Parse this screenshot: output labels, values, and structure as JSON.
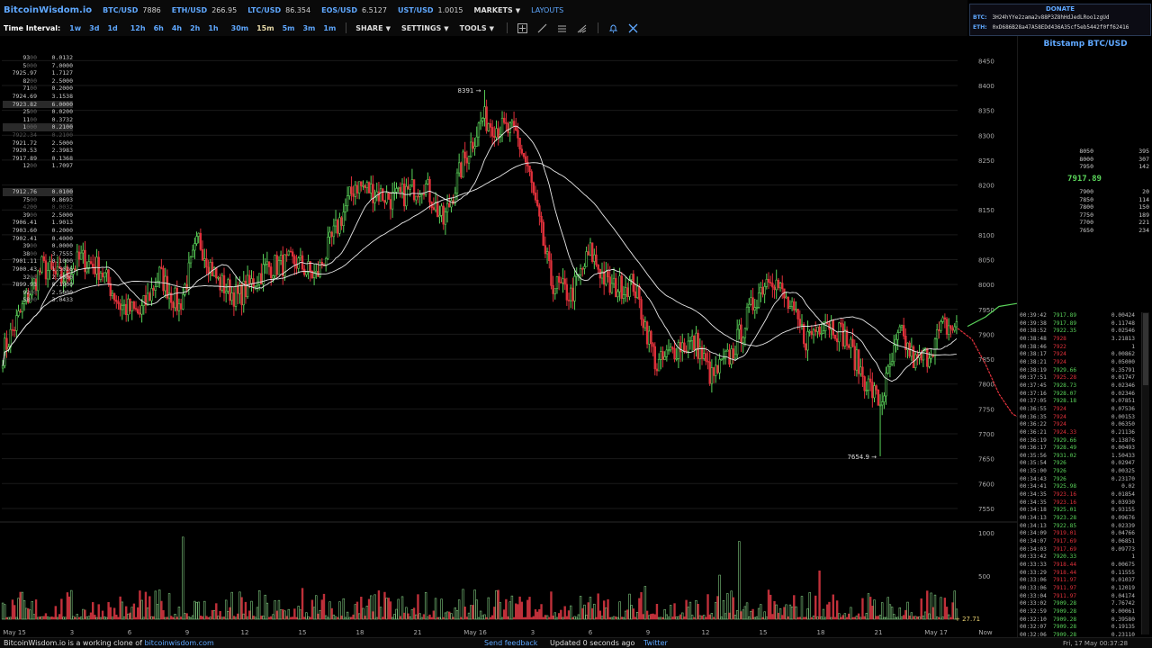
{
  "brand": {
    "logo": "BitcoinWisdom.io"
  },
  "tickers": [
    {
      "sym": "BTC/USD",
      "val": "7886"
    },
    {
      "sym": "ETH/USD",
      "val": "266.95"
    },
    {
      "sym": "LTC/USD",
      "val": "86.354"
    },
    {
      "sym": "EOS/USD",
      "val": "6.5127"
    },
    {
      "sym": "UST/USD",
      "val": "1.0015"
    }
  ],
  "menus": {
    "markets": "MARKETS",
    "layouts": "LAYOUTS",
    "share": "SHARE",
    "settings": "SETTINGS",
    "tools": "TOOLS"
  },
  "time_interval": {
    "label": "Time Interval:",
    "items": [
      "1w",
      "3d",
      "1d",
      "12h",
      "6h",
      "4h",
      "2h",
      "1h",
      "30m",
      "15m",
      "5m",
      "3m",
      "1m"
    ],
    "active": "15m"
  },
  "donate": {
    "title": "DONATE",
    "btc_label": "BTC:",
    "btc_addr": "3H24hYYe2zama2v88P3Z8hHdJedLRoo1zgUd",
    "eth_label": "ETH:",
    "eth_addr": "0xD686B28a47A58EDd436A35cf5eb5442f0ff62416"
  },
  "exchange": "Bitstamp BTC/USD",
  "last_price": "7917.89",
  "asks": [
    {
      "p": "93",
      "s": "00",
      "a": "0.0132"
    },
    {
      "p": "5",
      "s": "000",
      "a": "7.0000"
    },
    {
      "p": "7925.97",
      "s": "",
      "a": "1.7127"
    },
    {
      "p": "82",
      "s": "00",
      "a": "2.5000"
    },
    {
      "p": "71",
      "s": "00",
      "a": "0.2000"
    },
    {
      "p": "7924.69",
      "s": "",
      "a": "3.1538"
    },
    {
      "p": "7923.82",
      "s": "",
      "a": "6.0000",
      "hl": true
    },
    {
      "p": "25",
      "s": "00",
      "a": "0.0200"
    },
    {
      "p": "11",
      "s": "00",
      "a": "0.3732"
    },
    {
      "p": "1",
      "s": "000",
      "a": "0.2100",
      "hl": true
    },
    {
      "p": "7922.34",
      "s": "",
      "a": "0.2100",
      "dim": true
    },
    {
      "p": "7921.72",
      "s": "",
      "a": "2.5000"
    },
    {
      "p": "7920.53",
      "s": "",
      "a": "2.3983"
    },
    {
      "p": "7917.89",
      "s": "",
      "a": "0.1368"
    },
    {
      "p": "12",
      "s": "00",
      "a": "1.7097"
    }
  ],
  "bids": [
    {
      "p": "7912.76",
      "s": "",
      "a": "0.0100",
      "hl": true
    },
    {
      "p": "75",
      "s": "00",
      "a": "0.8693"
    },
    {
      "p": "42",
      "s": "00",
      "a": "0.0032",
      "dim": true
    },
    {
      "p": "39",
      "s": "00",
      "a": "2.5000"
    },
    {
      "p": "7906.41",
      "s": "",
      "a": "1.9013"
    },
    {
      "p": "7903.60",
      "s": "",
      "a": "0.2000"
    },
    {
      "p": "7902.41",
      "s": "",
      "a": "0.4000"
    },
    {
      "p": "39",
      "s": "00",
      "a": "0.0000"
    },
    {
      "p": "38",
      "s": "00",
      "a": "3.7555"
    },
    {
      "p": "7901.11",
      "s": "",
      "a": "0.1000"
    },
    {
      "p": "7900.43",
      "s": "",
      "a": "1.5026"
    },
    {
      "p": "32",
      "s": "00",
      "a": "2.5000"
    },
    {
      "p": "7899.93",
      "s": "",
      "a": "0.1900"
    },
    {
      "p": "92",
      "s": "00",
      "a": "2.5000"
    },
    {
      "p": "58",
      "s": "00",
      "a": "3.0433"
    }
  ],
  "ask_depth": [
    {
      "p": "8050",
      "q": "395"
    },
    {
      "p": "8000",
      "q": "307"
    },
    {
      "p": "7950",
      "q": "142"
    }
  ],
  "bid_depth": [
    {
      "p": "7900",
      "q": "20"
    },
    {
      "p": "7850",
      "q": "114"
    },
    {
      "p": "7800",
      "q": "150"
    },
    {
      "p": "7750",
      "q": "189"
    },
    {
      "p": "7700",
      "q": "221"
    },
    {
      "p": "7650",
      "q": "234"
    }
  ],
  "trades": [
    {
      "t": "00:39:42",
      "p": "7917.89",
      "q": "0.00424",
      "c": "g"
    },
    {
      "t": "00:39:38",
      "p": "7917.89",
      "q": "0.11748",
      "c": "g"
    },
    {
      "t": "00:38:52",
      "p": "7922.35",
      "q": "0.02546",
      "c": "g"
    },
    {
      "t": "00:38:48",
      "p": "7928",
      "q": "3.21813",
      "c": "r"
    },
    {
      "t": "00:38:46",
      "p": "7922",
      "q": "1",
      "c": "r"
    },
    {
      "t": "00:38:17",
      "p": "7924",
      "q": "0.00862",
      "c": "r"
    },
    {
      "t": "00:38:21",
      "p": "7924",
      "q": "0.05000",
      "c": "r"
    },
    {
      "t": "00:38:19",
      "p": "7929.66",
      "q": "0.35791",
      "c": "g"
    },
    {
      "t": "00:37:51",
      "p": "7925.28",
      "q": "0.01747",
      "c": "r"
    },
    {
      "t": "00:37:45",
      "p": "7928.73",
      "q": "0.02346",
      "c": "g"
    },
    {
      "t": "00:37:16",
      "p": "7928.07",
      "q": "0.02346",
      "c": "g"
    },
    {
      "t": "00:37:05",
      "p": "7928.18",
      "q": "0.07851",
      "c": "g"
    },
    {
      "t": "00:36:55",
      "p": "7924",
      "q": "0.07536",
      "c": "r"
    },
    {
      "t": "00:36:35",
      "p": "7924",
      "q": "0.00153",
      "c": "r"
    },
    {
      "t": "00:36:22",
      "p": "7924",
      "q": "0.06350",
      "c": "r"
    },
    {
      "t": "00:36:21",
      "p": "7924.33",
      "q": "0.21136",
      "c": "r"
    },
    {
      "t": "00:36:19",
      "p": "7929.66",
      "q": "0.13876",
      "c": "g"
    },
    {
      "t": "00:36:17",
      "p": "7928.49",
      "q": "0.00493",
      "c": "g"
    },
    {
      "t": "00:35:56",
      "p": "7931.02",
      "q": "1.50433",
      "c": "g"
    },
    {
      "t": "00:35:54",
      "p": "7926",
      "q": "0.02947",
      "c": "g"
    },
    {
      "t": "00:35:00",
      "p": "7926",
      "q": "0.00325",
      "c": "g"
    },
    {
      "t": "00:34:43",
      "p": "7926",
      "q": "0.23170",
      "c": "g"
    },
    {
      "t": "00:34:41",
      "p": "7925.98",
      "q": "0.02",
      "c": "g"
    },
    {
      "t": "00:34:35",
      "p": "7923.16",
      "q": "0.01854",
      "c": "r"
    },
    {
      "t": "00:34:35",
      "p": "7923.16",
      "q": "0.03930",
      "c": "r"
    },
    {
      "t": "00:34:18",
      "p": "7925.01",
      "q": "0.93155",
      "c": "g"
    },
    {
      "t": "00:34:13",
      "p": "7923.28",
      "q": "0.09676",
      "c": "g"
    },
    {
      "t": "00:34:13",
      "p": "7922.85",
      "q": "0.02339",
      "c": "g"
    },
    {
      "t": "00:34:09",
      "p": "7919.01",
      "q": "0.04766",
      "c": "r"
    },
    {
      "t": "00:34:07",
      "p": "7917.69",
      "q": "0.06851",
      "c": "r"
    },
    {
      "t": "00:34:03",
      "p": "7917.69",
      "q": "0.09773",
      "c": "r"
    },
    {
      "t": "00:33:42",
      "p": "7920.33",
      "q": "1",
      "c": "g"
    },
    {
      "t": "00:33:33",
      "p": "7918.44",
      "q": "0.00675",
      "c": "r"
    },
    {
      "t": "00:33:29",
      "p": "7918.44",
      "q": "0.11555",
      "c": "r"
    },
    {
      "t": "00:33:06",
      "p": "7911.97",
      "q": "0.01037",
      "c": "r"
    },
    {
      "t": "00:33:06",
      "p": "7911.97",
      "q": "0.12019",
      "c": "r"
    },
    {
      "t": "00:33:04",
      "p": "7911.97",
      "q": "0.04174",
      "c": "r"
    },
    {
      "t": "00:33:02",
      "p": "7909.28",
      "q": "7.76742",
      "c": "g"
    },
    {
      "t": "00:32:59",
      "p": "7909.28",
      "q": "0.00061",
      "c": "g"
    },
    {
      "t": "00:32:10",
      "p": "7909.28",
      "q": "0.39580",
      "c": "g"
    },
    {
      "t": "00:32:07",
      "p": "7909.28",
      "q": "0.19135",
      "c": "g"
    },
    {
      "t": "00:32:06",
      "p": "7909.28",
      "q": "0.23110",
      "c": "g"
    }
  ],
  "chart_data": {
    "type": "candlestick",
    "price_axis_ticks": [
      "8450",
      "8400",
      "8350",
      "8300",
      "8250",
      "8200",
      "8150",
      "8100",
      "8050",
      "8000",
      "7950",
      "7900",
      "7850",
      "7800",
      "7750",
      "7700",
      "7650",
      "7600",
      "7550"
    ],
    "price_range": [
      7530,
      8485
    ],
    "volume_axis_ticks": [
      "1000",
      "500"
    ],
    "volume_range": [
      0,
      1000
    ],
    "date_labels": [
      "May 15",
      "3",
      "6",
      "9",
      "12",
      "15",
      "18",
      "21",
      "May 16",
      "3",
      "6",
      "9",
      "12",
      "15",
      "18",
      "21",
      "May 17",
      "Now"
    ],
    "annotations": {
      "high": "8391",
      "low": "7654.9"
    },
    "current_volume": "27.71",
    "ma_periods": [
      "MA10",
      "MA30"
    ],
    "colors": {
      "up": "#5ad35a",
      "down": "#e0313b",
      "ma": "#e8e8e8",
      "grid": "#1a1a1a",
      "volume_up": "#7fc97f",
      "volume_down": "#c0303a"
    },
    "close_waypoints": [
      [
        0,
        7862
      ],
      [
        10,
        7952
      ],
      [
        20,
        8035
      ],
      [
        30,
        8010
      ],
      [
        40,
        8052
      ],
      [
        50,
        8030
      ],
      [
        60,
        7958
      ],
      [
        70,
        7940
      ],
      [
        80,
        8020
      ],
      [
        90,
        7955
      ],
      [
        100,
        8090
      ],
      [
        110,
        8005
      ],
      [
        120,
        7975
      ],
      [
        135,
        8035
      ],
      [
        150,
        8045
      ],
      [
        160,
        8015
      ],
      [
        180,
        8202
      ],
      [
        200,
        8170
      ],
      [
        215,
        8205
      ],
      [
        225,
        8125
      ],
      [
        235,
        8245
      ],
      [
        245,
        8335
      ],
      [
        252,
        8318
      ],
      [
        262,
        8302
      ],
      [
        268,
        8235
      ],
      [
        280,
        8005
      ],
      [
        290,
        7978
      ],
      [
        300,
        8065
      ],
      [
        310,
        7992
      ],
      [
        322,
        8002
      ],
      [
        334,
        7835
      ],
      [
        345,
        7878
      ],
      [
        354,
        7882
      ],
      [
        362,
        7812
      ],
      [
        372,
        7860
      ],
      [
        385,
        7978
      ],
      [
        392,
        8025
      ],
      [
        400,
        7965
      ],
      [
        410,
        7890
      ],
      [
        420,
        7932
      ],
      [
        430,
        7895
      ],
      [
        440,
        7810
      ],
      [
        448,
        7760
      ],
      [
        458,
        7902
      ],
      [
        466,
        7842
      ],
      [
        472,
        7858
      ],
      [
        480,
        7915
      ],
      [
        487,
        7913
      ]
    ],
    "candle_count": 488
  },
  "footer": {
    "clone_text": "BitcoinWisdom.io is a working clone of",
    "clone_link": "bitcoinwisdom.com",
    "feedback": "Send feedback",
    "updated": "Updated 0 seconds ago",
    "twitter": "Twitter",
    "clock": "Fri, 17 May 00:37:28"
  }
}
